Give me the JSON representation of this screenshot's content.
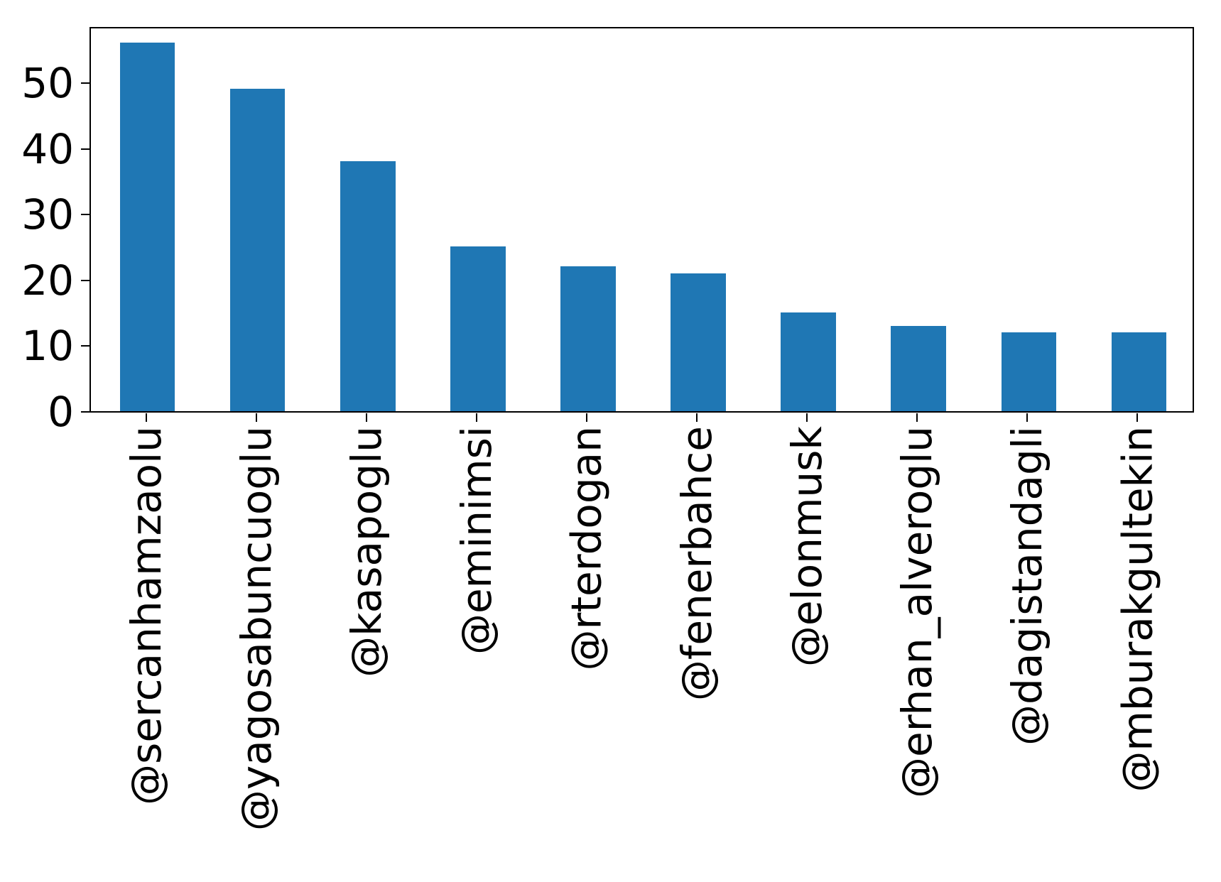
{
  "chart_data": {
    "type": "bar",
    "title": "",
    "xlabel": "",
    "ylabel": "",
    "categories": [
      "@sercanhamzaolu",
      "@yagosabuncuoglu",
      "@kasapoglu",
      "@eminimsi",
      "@rterdogan",
      "@fenerbahce",
      "@elonmusk",
      "@erhan_alveroglu",
      "@dagistandagli",
      "@mburakgultekin"
    ],
    "values": [
      56,
      49,
      38,
      25,
      22,
      21,
      15,
      13,
      12,
      12
    ],
    "yticks": [
      0,
      10,
      20,
      30,
      40,
      50
    ],
    "ylim": [
      0,
      58.3
    ],
    "bar_color": "#1f77b4",
    "axis_color": "#000000",
    "background_color": "#ffffff",
    "grid": false,
    "legend": null,
    "x_tick_rotation_deg": 90
  }
}
